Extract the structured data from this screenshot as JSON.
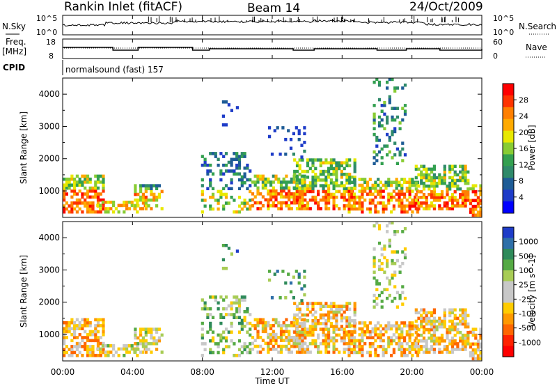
{
  "header": {
    "station": "Rankin Inlet (fitACF)",
    "beam": "Beam 14",
    "date": "24/Oct/2009"
  },
  "noise_panel": {
    "left_label": "N.Sky",
    "right_label": "N.Search",
    "left_ticks": [
      "10^5",
      "10^0"
    ],
    "right_ticks": [
      "10^5",
      "10^0"
    ]
  },
  "freq_panel": {
    "label_line1": "Freq.",
    "label_line2": "[MHz]",
    "left_ticks": [
      "18",
      "8"
    ],
    "right_ticks": [
      "60",
      "0"
    ],
    "right_label": "Nave"
  },
  "cpid_panel": {
    "label": "CPID",
    "program": "normalsound (fast) 157"
  },
  "chart_data": [
    {
      "type": "heatmap",
      "name": "power",
      "ylabel": "Slant Range [km]",
      "yticks": [
        1000,
        2000,
        3000,
        4000
      ],
      "ylim": [
        180,
        4500
      ],
      "colorbar_label": "Power [dB]",
      "colorbar_ticks": [
        "28",
        "24",
        "20",
        "16",
        "12",
        "8",
        "4"
      ],
      "colorbar_colors": [
        "#ff0000",
        "#ff3300",
        "#ff7f00",
        "#ffaa00",
        "#e8e800",
        "#88cc33",
        "#33a050",
        "#2f8a6a",
        "#1e5c96",
        "#1e3cc8",
        "#0000ff"
      ]
    },
    {
      "type": "heatmap",
      "name": "velocity",
      "ylabel": "Slant Range [km]",
      "yticks": [
        1000,
        2000,
        3000,
        4000
      ],
      "ylim": [
        180,
        4500
      ],
      "xlabel": "Time UT",
      "xticks": [
        "00:00",
        "04:00",
        "08:00",
        "12:00",
        "16:00",
        "20:00",
        "00:00"
      ],
      "colorbar_label": "Velocity [m s^-1]",
      "colorbar_ticks": [
        "1000",
        "500",
        "100",
        "25",
        "-25",
        "-100",
        "-500",
        "-1000"
      ],
      "colorbar_colors": [
        "#1e3cc8",
        "#2e6fa8",
        "#2e8a5a",
        "#55aa44",
        "#a8cc55",
        "#c8c8c8",
        "#c8c8c8",
        "#ffcc00",
        "#ff9900",
        "#ff6600",
        "#ff2200",
        "#ff0000"
      ]
    }
  ]
}
